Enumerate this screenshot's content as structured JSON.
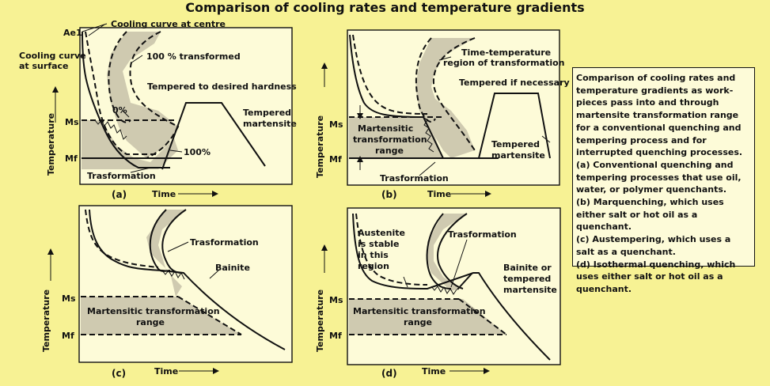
{
  "title": "Comparison of cooling rates and temperature gradients",
  "panels": {
    "a": {
      "caption": "(a)",
      "y_label": "Temperature",
      "x_label": "Time",
      "ae1": "Ae1",
      "ms": "Ms",
      "mf": "Mf",
      "cooling_centre": "Cooling curve at centre",
      "cooling_surface_1": "Cooling curve",
      "cooling_surface_2": "at surface",
      "transformed_100": "100 % transformed",
      "tempered_hardness": "Tempered to desired hardness",
      "zero_pct": "0%",
      "hundred_pct": "100%",
      "tempered_martensite_1": "Tempered",
      "tempered_martensite_2": "martensite",
      "transformation": "Trasformation"
    },
    "b": {
      "caption": "(b)",
      "y_label": "Temperature",
      "x_label": "Time",
      "ms": "Ms",
      "mf": "Mf",
      "region_1": "Time-temperature",
      "region_2": "region of transformation",
      "tempered_if": "Tempered if necessary",
      "mtr_1": "Martensitic",
      "mtr_2": "transformation",
      "mtr_3": "range",
      "tempered_1": "Tempered",
      "tempered_2": "martensite",
      "transformation": "Trasformation"
    },
    "c": {
      "caption": "(c)",
      "y_label": "Temperature",
      "x_label": "Time",
      "ms": "Ms",
      "mf": "Mf",
      "transformation": "Trasformation",
      "bainite": "Bainite",
      "mtr_1": "Martensitic transformation",
      "mtr_2": "range"
    },
    "d": {
      "caption": "(d)",
      "y_label": "Temperature",
      "x_label": "Time",
      "ms": "Ms",
      "mf": "Mf",
      "austenite_1": "Austenite",
      "austenite_2": "is stable",
      "austenite_3": "in this",
      "austenite_4": "region",
      "transformation": "Trasformation",
      "bainite_1": "Bainite or",
      "bainite_2": "tempered",
      "bainite_3": "martensite",
      "mtr_1": "Martensitic transformation",
      "mtr_2": "range"
    }
  },
  "description": {
    "intro": "Comparison of cooling rates and temperature gradients as work-pieces pass into and through martensite transformation range for a conventional quenching and tempering process and for interrupted quenching processes.",
    "a": "(a) Conventional quenching and tempering processes that use oil, water, or polymer quenchants.",
    "b": "(b) Marquenching, which uses either salt or hot oil as a quenchant.",
    "c": "(c) Austempering, which uses a salt as a quenchant.",
    "d": "(d) Isothermal quenching, which uses either salt or hot oil as a quenchant."
  }
}
